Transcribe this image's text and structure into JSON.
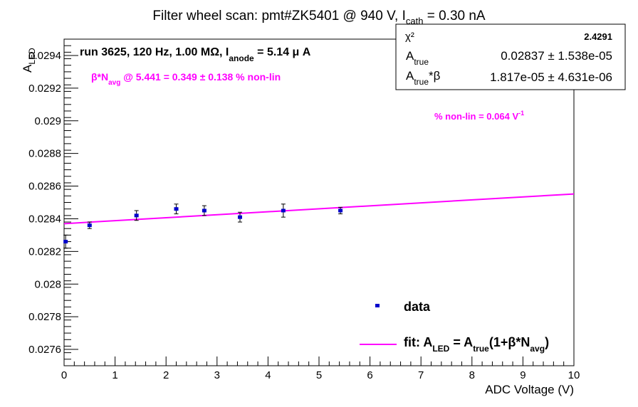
{
  "chart_data": {
    "type": "scatter",
    "title_parts": [
      "Filter wheel scan: pmt#ZK5401 @   940 V, I",
      "cath",
      " = 0.30 nA"
    ],
    "xlabel": "ADC Voltage (V)",
    "ylabel_parts": [
      "A",
      "LED"
    ],
    "xlim": [
      0,
      10
    ],
    "ylim": [
      0.0275,
      0.0295
    ],
    "x_ticks": [
      0,
      1,
      2,
      3,
      4,
      5,
      6,
      7,
      8,
      9,
      10
    ],
    "y_ticks": [
      0.0276,
      0.0278,
      0.028,
      0.0282,
      0.0284,
      0.0286,
      0.0288,
      0.029,
      0.0292,
      0.0294
    ],
    "x_tick_labels": [
      "0",
      "1",
      "2",
      "3",
      "4",
      "5",
      "6",
      "7",
      "8",
      "9",
      "10"
    ],
    "y_tick_labels": [
      "0.0276",
      "0.0278",
      "0.028",
      "0.0282",
      "0.0284",
      "0.0286",
      "0.0288",
      "0.029",
      "0.0292",
      "0.0294"
    ],
    "grid": false,
    "points": [
      {
        "x": 0.03,
        "y": 0.02826,
        "yerr": 4e-05
      },
      {
        "x": 0.5,
        "y": 0.02836,
        "yerr": 2e-05
      },
      {
        "x": 1.42,
        "y": 0.02842,
        "yerr": 3e-05
      },
      {
        "x": 2.2,
        "y": 0.02846,
        "yerr": 3e-05
      },
      {
        "x": 2.75,
        "y": 0.02845,
        "yerr": 3e-05
      },
      {
        "x": 3.45,
        "y": 0.02841,
        "yerr": 3e-05
      },
      {
        "x": 4.3,
        "y": 0.02845,
        "yerr": 4e-05
      },
      {
        "x": 5.42,
        "y": 0.02845,
        "yerr": 2e-05
      }
    ],
    "fit": {
      "x0": 0,
      "y0": 0.02837,
      "x1": 10,
      "y1": 0.028552
    },
    "colors": {
      "data": "#0000cc",
      "fit": "#ff00ff",
      "axis": "#000000"
    },
    "run_info_parts": [
      "run 3625, 120 Hz, 1.00 MΩ, I",
      "anode",
      " = 5.14 μ A"
    ],
    "beta_note_parts": [
      "β*N",
      "avg",
      " @ 5.441 = 0.349 ± 0.138 % non-lin"
    ],
    "nonlin_note_parts": [
      "% non-lin = 0.064 V",
      "-1"
    ],
    "stats": {
      "chi2_label": "χ²",
      "chi2_value": "2.4291",
      "atrue_label_parts": [
        "A",
        "true"
      ],
      "atrue_value": "0.02837 ± 1.538e-05",
      "atrue_beta_label_parts": [
        "A",
        "true",
        "*β"
      ],
      "atrue_beta_value": "1.817e-05 ± 4.631e-06"
    },
    "legend": {
      "data_label": "data",
      "fit_label_parts": [
        "fit: A",
        "LED",
        " = A",
        "true",
        "(1+β*N",
        "avg",
        ")"
      ]
    }
  }
}
